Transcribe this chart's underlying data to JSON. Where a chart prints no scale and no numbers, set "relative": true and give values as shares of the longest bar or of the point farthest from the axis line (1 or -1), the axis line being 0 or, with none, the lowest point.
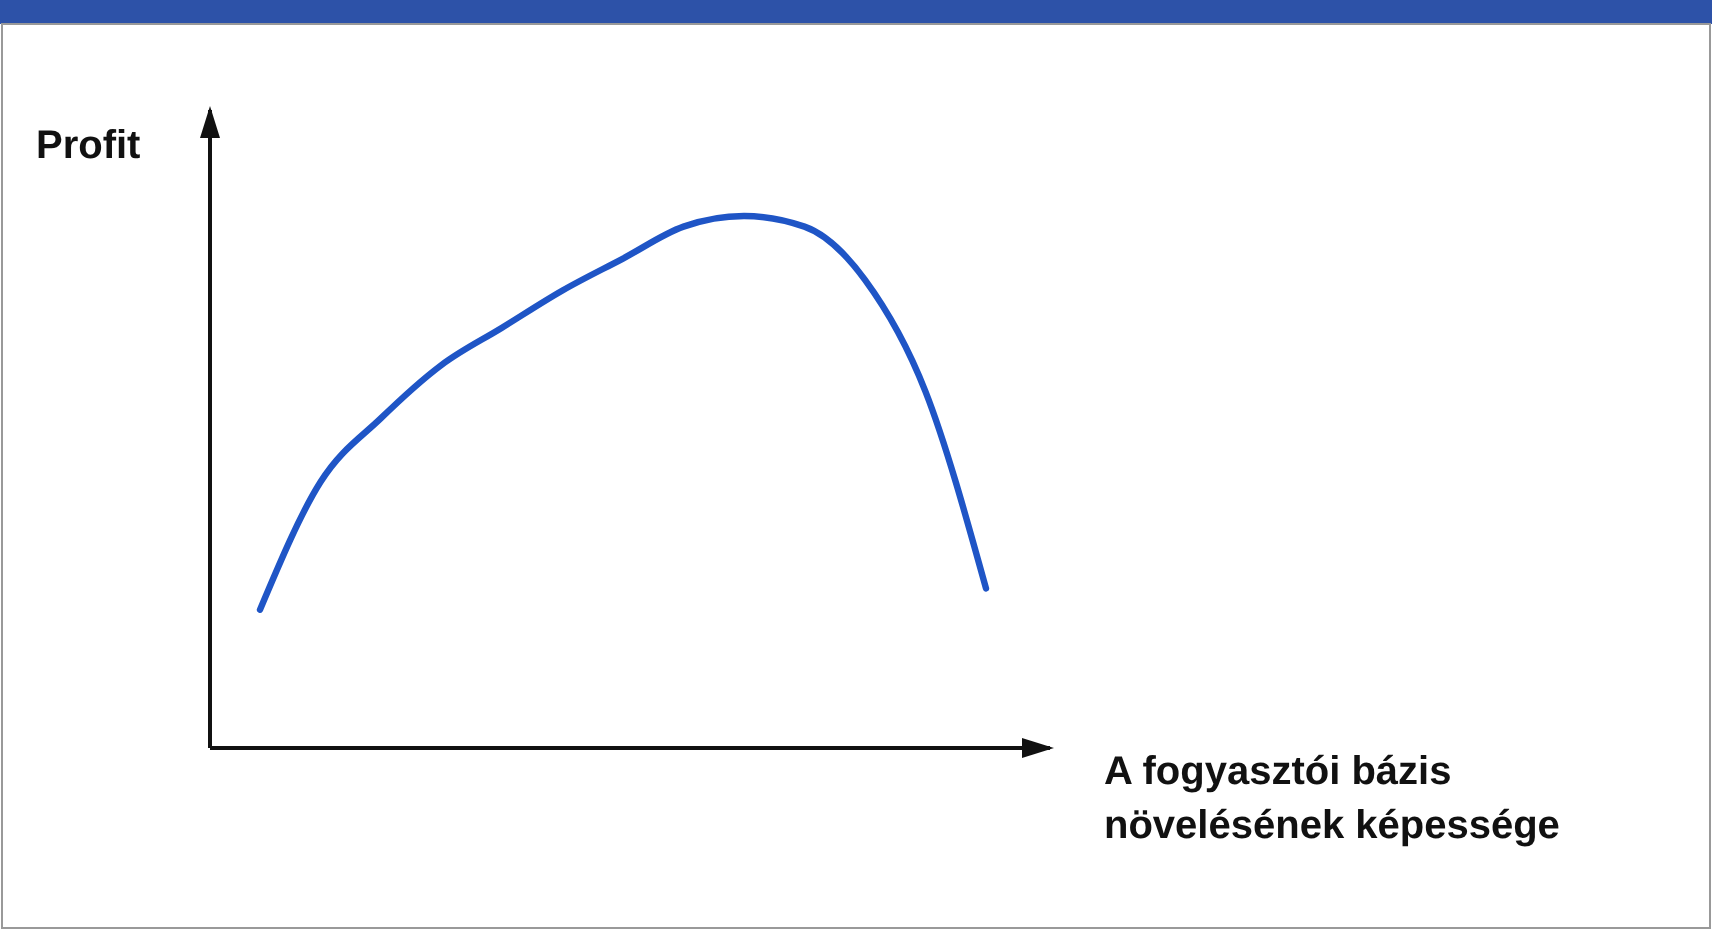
{
  "chart_data": {
    "type": "line",
    "xlabel": "A fogyasztói bázis\nnövelésének képessége",
    "ylabel": "Profit",
    "relative": true,
    "categories": [
      null,
      null,
      null,
      null,
      null,
      null,
      null,
      null,
      null,
      null,
      null,
      null,
      null
    ],
    "series": [
      {
        "color": "#1f55c6",
        "values": [
          0.26,
          0.5,
          0.62,
          0.72,
          0.79,
          0.86,
          0.92,
          0.98,
          1.0,
          0.98,
          0.88,
          0.67,
          0.3
        ]
      }
    ],
    "marker": "none",
    "line_style": "solid"
  }
}
